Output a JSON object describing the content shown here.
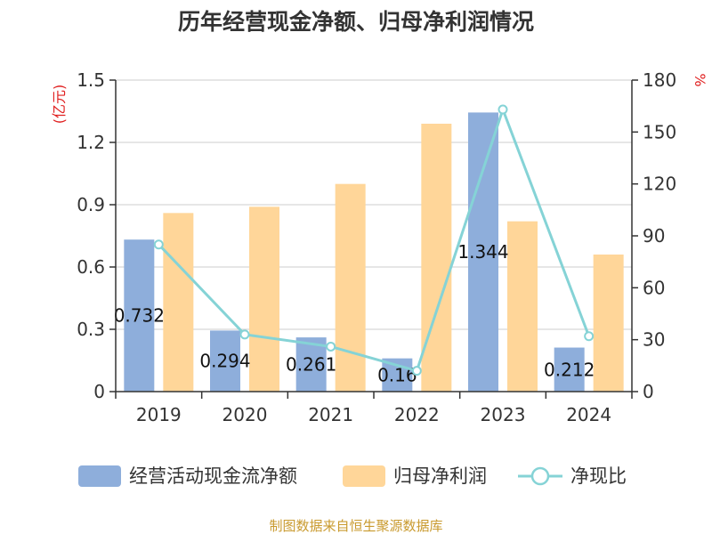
{
  "chart_data": {
    "type": "bar",
    "title": "历年经营现金净额、归母净利润情况",
    "categories": [
      "2019",
      "2020",
      "2021",
      "2022",
      "2023",
      "2024"
    ],
    "series": [
      {
        "name": "经营活动现金流净额",
        "type": "bar",
        "axis": "left",
        "color": "#8eaedb",
        "values": [
          0.732,
          0.294,
          0.261,
          0.16,
          1.344,
          0.212
        ],
        "labels": [
          "0.732",
          "0.294",
          "0.261",
          "0.16",
          "1.344",
          "0.212"
        ]
      },
      {
        "name": "归母净利润",
        "type": "bar",
        "axis": "left",
        "color": "#ffd699",
        "values": [
          0.86,
          0.89,
          1.0,
          1.29,
          0.82,
          0.66
        ]
      },
      {
        "name": "净现比",
        "type": "line",
        "axis": "right",
        "color": "#85d3d6",
        "values": [
          85,
          33,
          26,
          12,
          163,
          32
        ]
      }
    ],
    "left_axis": {
      "unit": "(亿元)",
      "ticks": [
        "0",
        "0.3",
        "0.6",
        "0.9",
        "1.2",
        "1.5"
      ],
      "range": [
        0,
        1.5
      ]
    },
    "right_axis": {
      "unit": "%",
      "ticks": [
        "0",
        "30",
        "60",
        "90",
        "120",
        "150",
        "180"
      ],
      "range": [
        0,
        180
      ]
    },
    "grid": true,
    "legend_position": "bottom",
    "colors": {
      "axis_unit": "#e02020",
      "source": "#c99a2e",
      "grid": "#cccccc",
      "axis": "#333333"
    }
  },
  "source_note": "制图数据来自恒生聚源数据库"
}
